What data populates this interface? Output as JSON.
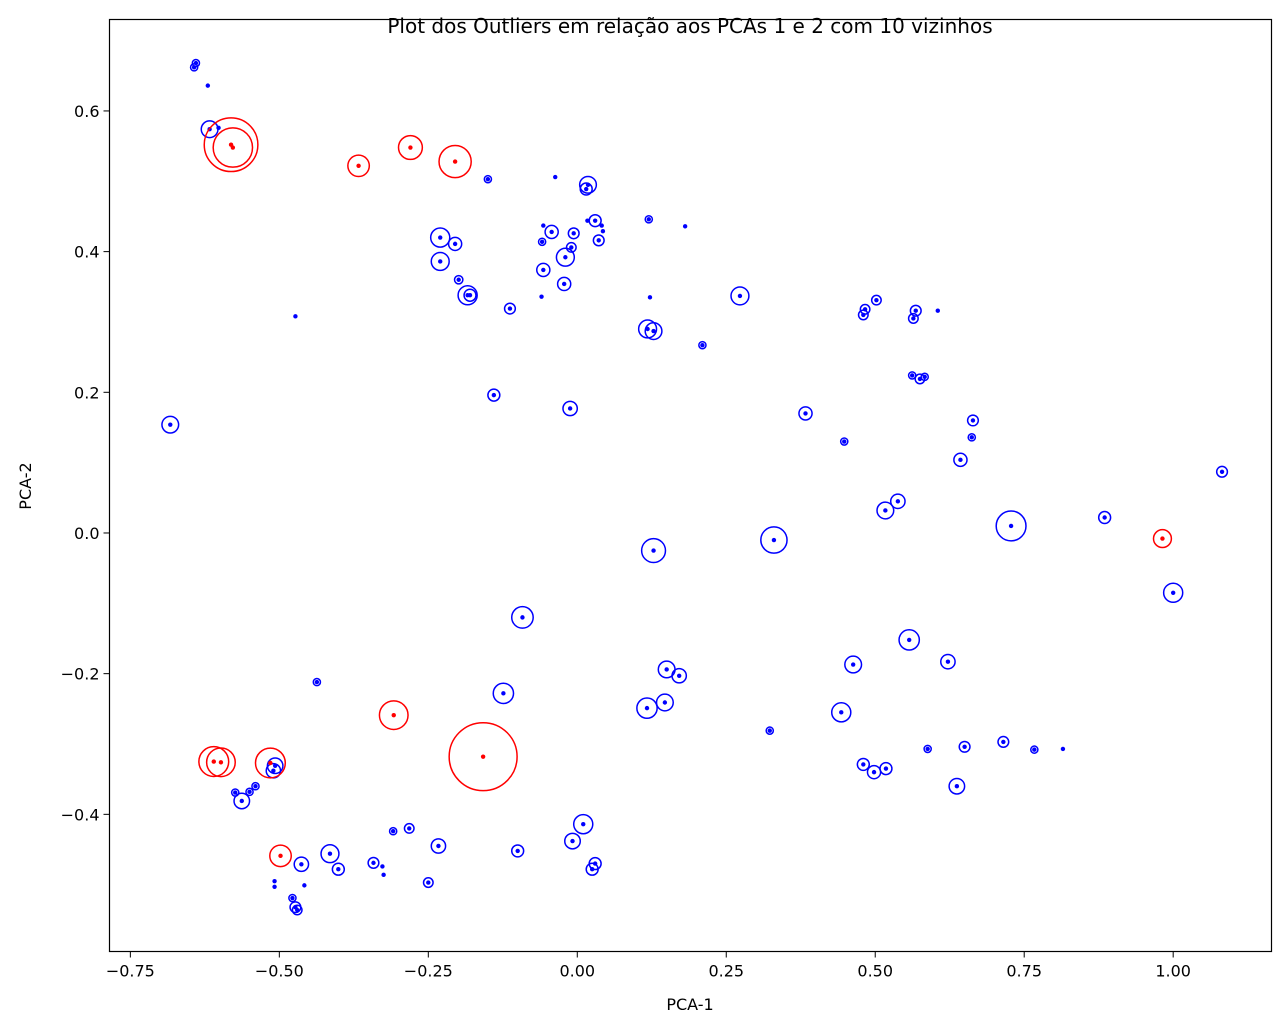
{
  "chart_data": {
    "type": "scatter",
    "title": "Plot dos Outliers em relação aos PCAs 1 e 2 com 10 vizinhos",
    "xlabel": "PCA-1",
    "ylabel": "PCA-2",
    "xlim": [
      -0.785,
      1.165
    ],
    "ylim": [
      -0.595,
      0.73
    ],
    "xticks": [
      -0.75,
      -0.5,
      -0.25,
      0.0,
      0.25,
      0.5,
      0.75,
      1.0
    ],
    "xtick_labels": [
      "−0.75",
      "−0.50",
      "−0.25",
      "0.00",
      "0.25",
      "0.50",
      "0.75",
      "1.00"
    ],
    "yticks": [
      -0.4,
      -0.2,
      0.0,
      0.2,
      0.4,
      0.6
    ],
    "ytick_labels": [
      "−0.4",
      "−0.2",
      "0.0",
      "0.2",
      "0.4",
      "0.6"
    ],
    "grid": false,
    "colors": {
      "inlier": "#0000ff",
      "outlier": "#ff0000"
    },
    "series": [
      {
        "color": "#0000ff",
        "points": [
          [
            -0.643,
            0.662,
            0.006
          ],
          [
            -0.64,
            0.668,
            0.006
          ],
          [
            -0.62,
            0.636,
            0.004
          ],
          [
            -0.617,
            0.574,
            0.014
          ],
          [
            -0.602,
            0.576,
            0.004
          ],
          [
            -0.473,
            0.308,
            0.004
          ],
          [
            -0.683,
            0.154,
            0.014
          ],
          [
            -0.23,
            0.42,
            0.016
          ],
          [
            -0.205,
            0.411,
            0.011
          ],
          [
            -0.23,
            0.386,
            0.015
          ],
          [
            -0.199,
            0.36,
            0.007
          ],
          [
            -0.184,
            0.338,
            0.016
          ],
          [
            -0.18,
            0.338,
            0.01
          ],
          [
            -0.14,
            0.196,
            0.01
          ],
          [
            -0.113,
            0.319,
            0.009
          ],
          [
            -0.15,
            0.503,
            0.006
          ],
          [
            -0.037,
            0.506,
            0.004
          ],
          [
            -0.057,
            0.437,
            0.004
          ],
          [
            -0.043,
            0.428,
            0.011
          ],
          [
            -0.059,
            0.414,
            0.006
          ],
          [
            -0.02,
            0.392,
            0.015
          ],
          [
            -0.057,
            0.374,
            0.011
          ],
          [
            -0.01,
            0.406,
            0.008
          ],
          [
            -0.006,
            0.426,
            0.009
          ],
          [
            -0.022,
            0.354,
            0.011
          ],
          [
            -0.06,
            0.336,
            0.004
          ],
          [
            0.015,
            0.489,
            0.01
          ],
          [
            0.018,
            0.495,
            0.014
          ],
          [
            0.017,
            0.444,
            0.004
          ],
          [
            0.03,
            0.444,
            0.01
          ],
          [
            0.041,
            0.437,
            0.004
          ],
          [
            0.043,
            0.429,
            0.004
          ],
          [
            0.036,
            0.416,
            0.009
          ],
          [
            -0.012,
            0.177,
            0.012
          ],
          [
            0.12,
            0.446,
            0.006
          ],
          [
            0.122,
            0.335,
            0.002
          ],
          [
            0.181,
            0.436,
            0.002
          ],
          [
            0.118,
            0.29,
            0.015
          ],
          [
            0.128,
            0.287,
            0.014
          ],
          [
            0.21,
            0.267,
            0.006
          ],
          [
            0.273,
            0.337,
            0.015
          ],
          [
            0.383,
            0.17,
            0.011
          ],
          [
            0.448,
            0.13,
            0.006
          ],
          [
            0.48,
            0.31,
            0.008
          ],
          [
            0.483,
            0.318,
            0.008
          ],
          [
            0.502,
            0.331,
            0.008
          ],
          [
            0.564,
            0.305,
            0.008
          ],
          [
            0.568,
            0.316,
            0.009
          ],
          [
            0.605,
            0.316,
            0.004
          ],
          [
            0.562,
            0.224,
            0.006
          ],
          [
            0.575,
            0.219,
            0.008
          ],
          [
            0.583,
            0.222,
            0.006
          ],
          [
            0.662,
            0.136,
            0.006
          ],
          [
            0.664,
            0.16,
            0.009
          ],
          [
            0.643,
            0.104,
            0.011
          ],
          [
            0.538,
            0.045,
            0.012
          ],
          [
            0.517,
            0.032,
            0.014
          ],
          [
            0.728,
            0.01,
            0.025
          ],
          [
            0.885,
            0.022,
            0.01
          ],
          [
            1.082,
            0.087,
            0.009
          ],
          [
            0.33,
            -0.01,
            0.022
          ],
          [
            0.128,
            -0.025,
            0.02
          ],
          [
            -0.092,
            -0.12,
            0.018
          ],
          [
            1.0,
            -0.085,
            0.016
          ],
          [
            0.557,
            -0.152,
            0.017
          ],
          [
            0.622,
            -0.183,
            0.012
          ],
          [
            0.463,
            -0.187,
            0.014
          ],
          [
            0.15,
            -0.194,
            0.014
          ],
          [
            0.171,
            -0.203,
            0.012
          ],
          [
            0.147,
            -0.241,
            0.014
          ],
          [
            0.117,
            -0.249,
            0.017
          ],
          [
            0.443,
            -0.255,
            0.016
          ],
          [
            0.323,
            -0.281,
            0.006
          ],
          [
            0.588,
            -0.307,
            0.006
          ],
          [
            0.65,
            -0.304,
            0.009
          ],
          [
            0.715,
            -0.297,
            0.009
          ],
          [
            0.767,
            -0.308,
            0.006
          ],
          [
            0.815,
            -0.307,
            0.004
          ],
          [
            0.48,
            -0.329,
            0.01
          ],
          [
            0.498,
            -0.34,
            0.011
          ],
          [
            0.518,
            -0.335,
            0.01
          ],
          [
            0.637,
            -0.36,
            0.013
          ],
          [
            -0.124,
            -0.228,
            0.017
          ],
          [
            -0.437,
            -0.212,
            0.006
          ],
          [
            -0.51,
            -0.338,
            0.012
          ],
          [
            -0.507,
            -0.331,
            0.013
          ],
          [
            -0.563,
            -0.381,
            0.013
          ],
          [
            -0.574,
            -0.369,
            0.006
          ],
          [
            -0.55,
            -0.368,
            0.006
          ],
          [
            -0.54,
            -0.36,
            0.006
          ],
          [
            -0.415,
            -0.456,
            0.015
          ],
          [
            -0.463,
            -0.471,
            0.012
          ],
          [
            -0.401,
            -0.478,
            0.01
          ],
          [
            -0.342,
            -0.469,
            0.009
          ],
          [
            -0.309,
            -0.424,
            0.006
          ],
          [
            -0.282,
            -0.42,
            0.008
          ],
          [
            -0.327,
            -0.474,
            0.004
          ],
          [
            -0.325,
            -0.486,
            0.004
          ],
          [
            -0.233,
            -0.445,
            0.012
          ],
          [
            -0.25,
            -0.497,
            0.008
          ],
          [
            -0.508,
            -0.495,
            0.004
          ],
          [
            -0.508,
            -0.503,
            0.004
          ],
          [
            -0.458,
            -0.501,
            0.004
          ],
          [
            -0.478,
            -0.519,
            0.006
          ],
          [
            -0.473,
            -0.532,
            0.009
          ],
          [
            -0.47,
            -0.536,
            0.008
          ],
          [
            -0.1,
            -0.452,
            0.01
          ],
          [
            -0.008,
            -0.438,
            0.013
          ],
          [
            0.01,
            -0.414,
            0.016
          ],
          [
            0.025,
            -0.478,
            0.01
          ],
          [
            0.03,
            -0.47,
            0.01
          ]
        ]
      },
      {
        "color": "#ff0000",
        "points": [
          [
            -0.581,
            0.552,
            0.045
          ],
          [
            -0.578,
            0.548,
            0.033
          ],
          [
            -0.367,
            0.522,
            0.018
          ],
          [
            -0.28,
            0.548,
            0.02
          ],
          [
            -0.205,
            0.528,
            0.027
          ],
          [
            0.982,
            -0.008,
            0.015
          ],
          [
            -0.61,
            -0.325,
            0.025
          ],
          [
            -0.598,
            -0.326,
            0.024
          ],
          [
            -0.515,
            -0.327,
            0.025
          ],
          [
            -0.308,
            -0.259,
            0.024
          ],
          [
            -0.158,
            -0.318,
            0.057
          ],
          [
            -0.498,
            -0.459,
            0.018
          ]
        ]
      }
    ]
  }
}
